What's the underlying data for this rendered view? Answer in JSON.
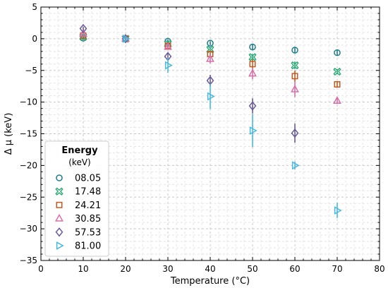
{
  "chart_data": {
    "type": "scatter",
    "xlabel": "Temperature (°C)",
    "ylabel": "Δ μ (keV)",
    "xlim": [
      0,
      80
    ],
    "ylim": [
      -35,
      5
    ],
    "xticks": [
      0,
      10,
      20,
      30,
      40,
      50,
      60,
      70,
      80
    ],
    "yticks": [
      5,
      0,
      -5,
      -10,
      -15,
      -20,
      -25,
      -30,
      -35
    ],
    "grid": "on (dashed, major and minor)",
    "legend_placement": "lower-left",
    "legend": {
      "title": "Energy",
      "subtitle": "(keV)"
    },
    "series": [
      {
        "name": "08.05",
        "marker": "circle",
        "color": "#1f7a8c",
        "points": [
          {
            "x": 10,
            "y": 0.1,
            "err": 0.3
          },
          {
            "x": 20,
            "y": 0.0,
            "err": 0.2
          },
          {
            "x": 30,
            "y": -0.4,
            "err": 0.3
          },
          {
            "x": 40,
            "y": -0.7,
            "err": 0.3
          },
          {
            "x": 50,
            "y": -1.3,
            "err": 0.4
          },
          {
            "x": 60,
            "y": -1.8,
            "err": 0.5
          },
          {
            "x": 70,
            "y": -2.2,
            "err": 0.4
          }
        ]
      },
      {
        "name": "17.48",
        "marker": "x-filled",
        "color": "#2aa876",
        "points": [
          {
            "x": 10,
            "y": 0.3,
            "err": 0.3
          },
          {
            "x": 20,
            "y": 0.0,
            "err": 0.2
          },
          {
            "x": 30,
            "y": -0.8,
            "err": 0.3
          },
          {
            "x": 40,
            "y": -1.7,
            "err": 0.3
          },
          {
            "x": 50,
            "y": -2.9,
            "err": 0.5
          },
          {
            "x": 60,
            "y": -4.2,
            "err": 0.6
          },
          {
            "x": 70,
            "y": -5.2,
            "err": 0.4
          }
        ]
      },
      {
        "name": "24.21",
        "marker": "square",
        "color": "#c45a1f",
        "points": [
          {
            "x": 10,
            "y": 0.5,
            "err": 0.3
          },
          {
            "x": 20,
            "y": 0.0,
            "err": 0.2
          },
          {
            "x": 30,
            "y": -1.1,
            "err": 0.4
          },
          {
            "x": 40,
            "y": -2.4,
            "err": 0.5
          },
          {
            "x": 50,
            "y": -4.0,
            "err": 0.7
          },
          {
            "x": 60,
            "y": -5.9,
            "err": 0.9
          },
          {
            "x": 70,
            "y": -7.2,
            "err": 0.5
          }
        ]
      },
      {
        "name": "30.85",
        "marker": "triangle-up",
        "color": "#d670a8",
        "points": [
          {
            "x": 10,
            "y": 0.8,
            "err": 0.3
          },
          {
            "x": 20,
            "y": 0.0,
            "err": 0.2
          },
          {
            "x": 30,
            "y": -1.3,
            "err": 0.4
          },
          {
            "x": 40,
            "y": -3.2,
            "err": 0.7
          },
          {
            "x": 50,
            "y": -5.5,
            "err": 0.9
          },
          {
            "x": 60,
            "y": -8.0,
            "err": 1.2
          },
          {
            "x": 70,
            "y": -9.8,
            "err": 0.5
          }
        ]
      },
      {
        "name": "57.53",
        "marker": "diamond",
        "color": "#6a5a96",
        "points": [
          {
            "x": 10,
            "y": 1.6,
            "err": 0.3
          },
          {
            "x": 20,
            "y": 0.0,
            "err": 0.2
          },
          {
            "x": 30,
            "y": -2.8,
            "err": 0.6
          },
          {
            "x": 40,
            "y": -6.6,
            "err": 0.9
          },
          {
            "x": 50,
            "y": -10.6,
            "err": 1.2
          },
          {
            "x": 60,
            "y": -14.9,
            "err": 1.5
          }
        ]
      },
      {
        "name": "81.00",
        "marker": "triangle-right",
        "color": "#4ab8dd",
        "points": [
          {
            "x": 20,
            "y": 0.0,
            "err": 0.2
          },
          {
            "x": 30,
            "y": -4.2,
            "err": 1.2
          },
          {
            "x": 40,
            "y": -9.1,
            "err": 2.0
          },
          {
            "x": 50,
            "y": -14.5,
            "err": 2.6
          },
          {
            "x": 60,
            "y": -20.0,
            "err": 0.6
          },
          {
            "x": 70,
            "y": -27.1,
            "err": 1.2
          }
        ]
      }
    ]
  }
}
